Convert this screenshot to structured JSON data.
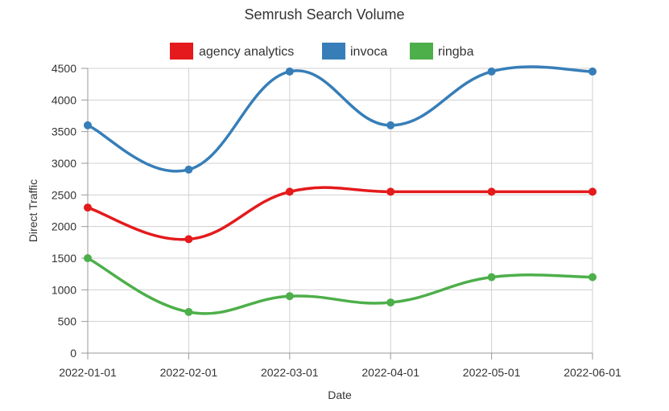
{
  "chart_data": {
    "type": "line",
    "title": "Semrush Search Volume",
    "xlabel": "Date",
    "ylabel": "Direct Traffic",
    "x": [
      "2022-01-01",
      "2022-02-01",
      "2022-03-01",
      "2022-04-01",
      "2022-05-01",
      "2022-06-01"
    ],
    "ylim": [
      0,
      4500
    ],
    "yticks": [
      0,
      500,
      1000,
      1500,
      2000,
      2500,
      3000,
      3500,
      4000,
      4500
    ],
    "grid": true,
    "legend_position": "top",
    "series": [
      {
        "name": "agency analytics",
        "color": "#e41a1c",
        "values": [
          2300,
          1800,
          2550,
          2550,
          2550,
          2550
        ]
      },
      {
        "name": "invoca",
        "color": "#377eb8",
        "values": [
          3600,
          2900,
          4450,
          3600,
          4450,
          4450
        ]
      },
      {
        "name": "ringba",
        "color": "#4daf4a",
        "values": [
          1500,
          650,
          900,
          800,
          1200,
          1200
        ]
      }
    ]
  }
}
